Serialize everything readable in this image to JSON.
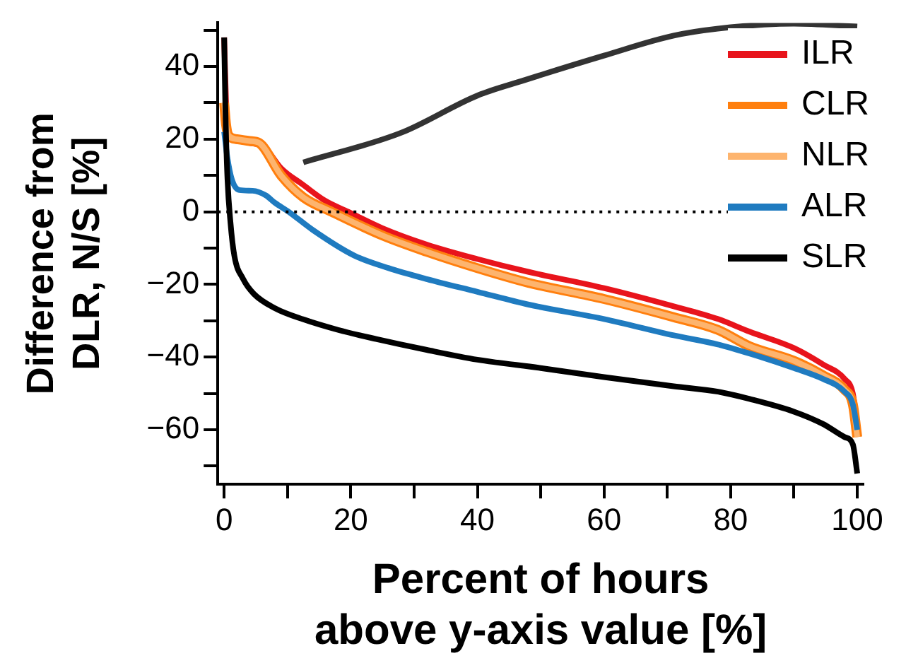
{
  "chart_data": {
    "type": "line",
    "xlabel": "Percent of hours\nabove y-axis value [%]",
    "ylabel": "Difference from\nDLR, N/S [%]",
    "xlim": [
      -1,
      101
    ],
    "ylim": [
      -75,
      52
    ],
    "xticks": [
      0,
      {
        "value": 10,
        "label": null
      },
      20,
      {
        "value": 30,
        "label": null
      },
      40,
      {
        "value": 50,
        "label": null
      },
      60,
      {
        "value": 70,
        "label": null
      },
      80,
      {
        "value": 90,
        "label": null
      },
      100
    ],
    "yticks": [
      {
        "value": -70,
        "label": null
      },
      {
        "value": -60,
        "label": "−60"
      },
      {
        "value": -50,
        "label": null
      },
      {
        "value": -40,
        "label": "−40"
      },
      {
        "value": -30,
        "label": null
      },
      {
        "value": -20,
        "label": "−20"
      },
      {
        "value": -10,
        "label": null
      },
      0,
      {
        "value": 10,
        "label": null
      },
      20,
      {
        "value": 30,
        "label": null
      },
      40,
      {
        "value": 50,
        "label": null
      }
    ],
    "legend": "top right",
    "grid": false,
    "marker": "none",
    "line_style": "solid",
    "ref_lines": [
      {
        "axis": "y",
        "value": 0,
        "line_style": "dotted",
        "color": "#000000"
      }
    ],
    "series": [
      {
        "name": "ILR",
        "color": "#e8141c",
        "x": [
          0,
          0.3,
          0.7,
          2,
          4,
          6.4,
          9,
          12.5,
          16,
          19.6,
          25,
          32,
          40,
          48,
          60,
          71,
          78,
          83,
          90,
          94.6,
          98,
          99.3,
          100
        ],
        "values": [
          48,
          30,
          21,
          19.5,
          19,
          17.7,
          12,
          7.4,
          3,
          0,
          -4.5,
          -9,
          -13,
          -16.5,
          -21,
          -26,
          -29.5,
          -33,
          -37.5,
          -42,
          -46,
          -50,
          -59
        ]
      },
      {
        "name": "CLR",
        "color": "#ff7f0e",
        "x": [
          0,
          0.3,
          0.7,
          2,
          4,
          5.5,
          9,
          12.5,
          17,
          25,
          32,
          40,
          48,
          60,
          71,
          78,
          83,
          90,
          94.6,
          98,
          99.3,
          100
        ],
        "values": [
          30,
          24,
          21,
          20,
          19.5,
          19,
          10,
          4,
          0,
          -6.5,
          -11,
          -15.5,
          -19.5,
          -24,
          -29,
          -32.5,
          -37,
          -41,
          -45,
          -49,
          -53,
          -62
        ]
      },
      {
        "name": "NLR",
        "color": "#fdb46e",
        "x": [
          0,
          0.3,
          0.7,
          2,
          4,
          5.5,
          9,
          12.5,
          17,
          25,
          32,
          40,
          48,
          60,
          71,
          78,
          83,
          90,
          94.6,
          98,
          99.3,
          100
        ],
        "values": [
          30,
          24,
          21,
          20,
          19.5,
          19,
          10,
          4,
          0,
          -6.5,
          -11,
          -15.5,
          -19.5,
          -24,
          -29,
          -32.5,
          -37,
          -41,
          -45,
          -49,
          -53,
          -62
        ]
      },
      {
        "name": "ALR",
        "color": "#1f7bc0",
        "x": [
          0,
          0.5,
          1.2,
          2.4,
          4.5,
          6.6,
          8,
          10.2,
          14,
          20.5,
          26,
          32,
          40,
          48,
          60,
          71,
          78,
          83,
          90,
          94.6,
          98,
          99.3,
          100
        ],
        "values": [
          22,
          15,
          9,
          6,
          5.8,
          4.5,
          2.5,
          0,
          -5,
          -12,
          -15.5,
          -18.5,
          -22,
          -25.5,
          -29.5,
          -34,
          -36.5,
          -39,
          -43,
          -46,
          -49.5,
          -53,
          -60
        ]
      },
      {
        "name": "SLR",
        "color": "#000000",
        "x": [
          0,
          0.2,
          0.5,
          1,
          1.6,
          3,
          4.7,
          8,
          12.5,
          18,
          24,
          32,
          40,
          50,
          60,
          71,
          78,
          83,
          90,
          94.6,
          98,
          99.3,
          100
        ],
        "values": [
          48,
          28,
          10,
          -3,
          -12,
          -18.5,
          -22.6,
          -26.5,
          -29.6,
          -32.5,
          -35,
          -38,
          -40.7,
          -43,
          -45.5,
          -48,
          -49.5,
          -51.5,
          -55,
          -58.4,
          -62,
          -64,
          -72
        ]
      },
      {
        "color": "#333333",
        "x": [
          12.5,
          28,
          40,
          47,
          60,
          71,
          80,
          90,
          100
        ],
        "values": [
          13.6,
          21.8,
          32,
          36,
          43,
          48.5,
          50.8,
          51.8,
          51
        ]
      }
    ]
  }
}
